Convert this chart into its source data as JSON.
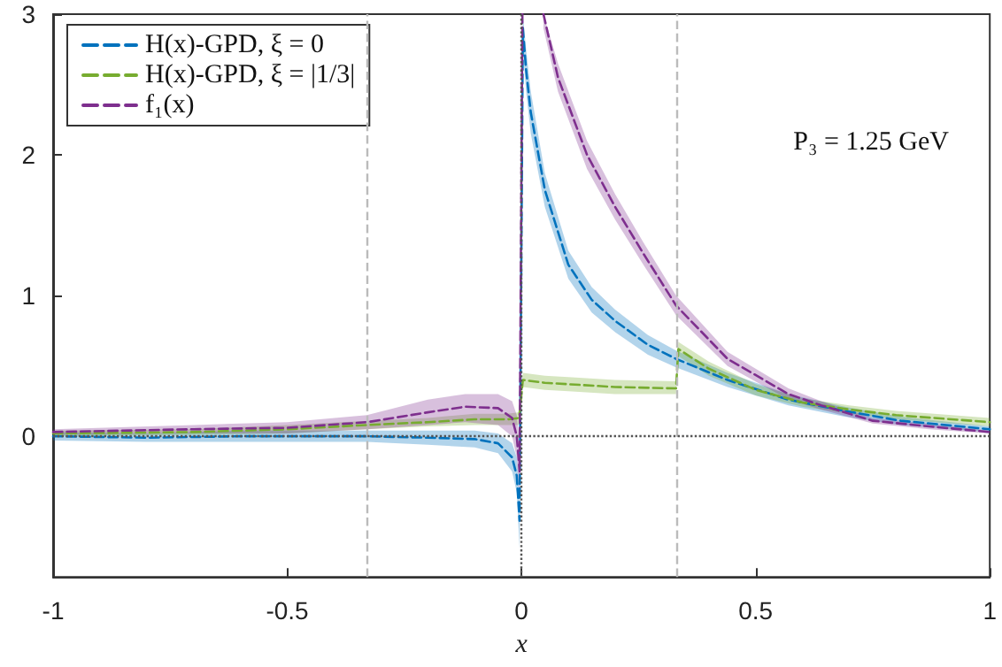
{
  "chart_data": {
    "type": "line",
    "xlabel": "x",
    "xlim": [
      -1,
      1
    ],
    "xticks": [
      -1,
      -0.5,
      0,
      0.5,
      1
    ],
    "ylim": [
      -1,
      3
    ],
    "yticks": [
      0,
      1,
      2,
      3
    ],
    "grid": false,
    "legend": "top left",
    "line_style": "dashed",
    "marker": "none",
    "annotations": [
      "P₃ = 1.25 GeV"
    ],
    "ref_lines": [
      {
        "axis": "x",
        "value": -0.333,
        "line_style": "dashed",
        "color": "#bbbbbb"
      },
      {
        "axis": "x",
        "value": 0.333,
        "line_style": "dashed",
        "color": "#bbbbbb"
      },
      {
        "axis": "y",
        "value": 0,
        "line_style": "dotted",
        "color": "#555555"
      },
      {
        "axis": "x",
        "value": 0,
        "line_style": "dotted",
        "color": "#555555"
      }
    ],
    "series": [
      {
        "name": "H(x)-GPD, ξ = 0",
        "color": "#0072bd",
        "x": [
          -1,
          -0.8,
          -0.6,
          -0.33,
          -0.2,
          -0.1,
          -0.05,
          -0.02,
          -0.01,
          -0.004,
          0.003,
          0.01,
          0.02,
          0.05,
          0.1,
          0.15,
          0.2,
          0.27,
          0.33,
          0.44,
          0.57,
          0.69,
          0.81,
          1
        ],
        "values": [
          0,
          -0.01,
          0,
          0,
          -0.01,
          -0.02,
          -0.05,
          -0.15,
          -0.28,
          -0.6,
          2.9,
          2.6,
          2.3,
          1.75,
          1.22,
          0.97,
          0.82,
          0.65,
          0.55,
          0.4,
          0.26,
          0.18,
          0.11,
          0.05
        ],
        "lower": [
          -0.03,
          -0.04,
          -0.04,
          -0.04,
          -0.06,
          -0.08,
          -0.12,
          -0.25,
          -0.4,
          -0.8,
          2.75,
          2.45,
          2.15,
          1.63,
          1.12,
          0.88,
          0.74,
          0.58,
          0.49,
          0.35,
          0.22,
          0.14,
          0.08,
          0.03
        ],
        "upper": [
          0.03,
          0.02,
          0.04,
          0.04,
          0.04,
          0.04,
          0.02,
          -0.05,
          -0.15,
          -0.4,
          3,
          2.75,
          2.45,
          1.87,
          1.32,
          1.06,
          0.9,
          0.72,
          0.61,
          0.45,
          0.3,
          0.21,
          0.14,
          0.07
        ]
      },
      {
        "name": "H(x)-GPD, ξ = |1/3|",
        "color": "#77ac30",
        "x": [
          -1,
          -0.7,
          -0.5,
          -0.33,
          -0.2,
          -0.1,
          -0.03,
          -0.005,
          0.003,
          0.05,
          0.1,
          0.2,
          0.33,
          0.335,
          0.4,
          0.5,
          0.6,
          0.7,
          0.8,
          1
        ],
        "values": [
          0.02,
          0.03,
          0.05,
          0.08,
          0.1,
          0.12,
          0.12,
          0.13,
          0.4,
          0.38,
          0.37,
          0.35,
          0.34,
          0.62,
          0.48,
          0.33,
          0.24,
          0.19,
          0.15,
          0.1
        ],
        "lower": [
          0,
          0.01,
          0.02,
          0.05,
          0.07,
          0.08,
          0.08,
          0.08,
          0.35,
          0.33,
          0.32,
          0.3,
          0.3,
          0.57,
          0.43,
          0.29,
          0.21,
          0.16,
          0.12,
          0.07
        ],
        "upper": [
          0.04,
          0.05,
          0.08,
          0.11,
          0.13,
          0.16,
          0.16,
          0.17,
          0.45,
          0.43,
          0.42,
          0.4,
          0.39,
          0.67,
          0.53,
          0.37,
          0.27,
          0.22,
          0.18,
          0.13
        ]
      },
      {
        "name": "f₁(x)",
        "color": "#7e2f8e",
        "x": [
          -1,
          -0.7,
          -0.5,
          -0.33,
          -0.2,
          -0.12,
          -0.05,
          -0.02,
          -0.01,
          -0.004,
          0.002,
          0.02,
          0.047,
          0.078,
          0.14,
          0.2,
          0.26,
          0.33,
          0.44,
          0.57,
          0.64,
          0.75,
          0.87,
          1
        ],
        "values": [
          0.03,
          0.05,
          0.06,
          0.1,
          0.17,
          0.21,
          0.2,
          0.13,
          0.0,
          -0.25,
          3,
          null,
          3,
          2.55,
          2.0,
          1.63,
          1.3,
          0.93,
          0.55,
          0.3,
          0.22,
          0.11,
          0.07,
          0.03
        ],
        "lower": [
          0.01,
          0.02,
          0.02,
          0.05,
          0.08,
          0.1,
          0.08,
          0.0,
          -0.15,
          -0.45,
          2.9,
          null,
          2.9,
          2.45,
          1.9,
          1.54,
          1.22,
          0.86,
          0.5,
          0.26,
          0.19,
          0.09,
          0.05,
          0.02
        ],
        "upper": [
          0.05,
          0.08,
          0.1,
          0.15,
          0.26,
          0.3,
          0.3,
          0.25,
          0.15,
          -0.05,
          3,
          null,
          3,
          2.65,
          2.1,
          1.72,
          1.38,
          1.0,
          0.6,
          0.34,
          0.25,
          0.13,
          0.09,
          0.04
        ]
      }
    ]
  }
}
